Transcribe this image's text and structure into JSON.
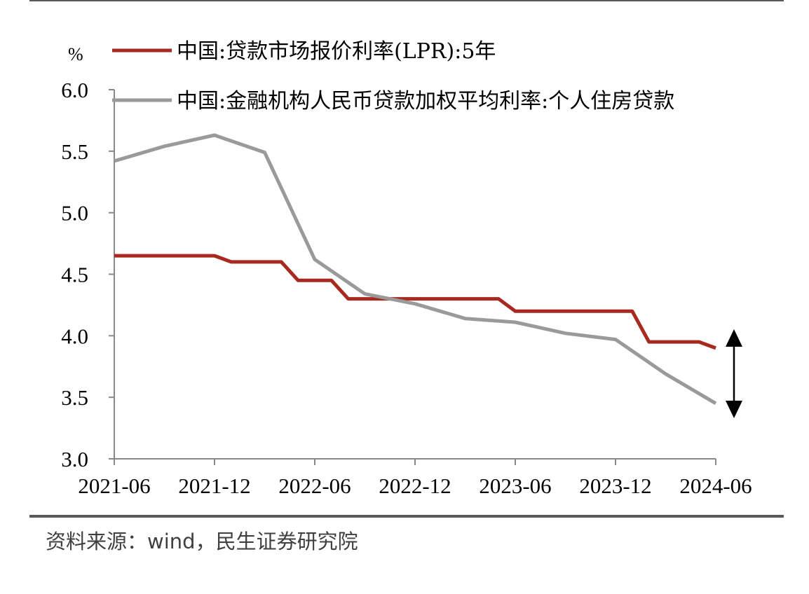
{
  "chart_data": {
    "type": "line",
    "unit": "%",
    "x_ticks": [
      "2021-06",
      "2021-12",
      "2022-06",
      "2022-12",
      "2023-06",
      "2023-12",
      "2024-06"
    ],
    "y_ticks": [
      "6.0",
      "5.5",
      "5.0",
      "4.5",
      "4.0",
      "3.5",
      "3.0"
    ],
    "ylim": [
      3.0,
      6.0
    ],
    "xlim": [
      "2021-06",
      "2024-06"
    ],
    "grid": false,
    "legend_position": "top-left",
    "series": [
      {
        "name": "中国:贷款市场报价利率(LPR):5年",
        "color": "#a8291f",
        "points": [
          [
            "2021-06",
            4.65
          ],
          [
            "2021-07",
            4.65
          ],
          [
            "2021-08",
            4.65
          ],
          [
            "2021-09",
            4.65
          ],
          [
            "2021-10",
            4.65
          ],
          [
            "2021-11",
            4.65
          ],
          [
            "2021-12",
            4.65
          ],
          [
            "2022-01",
            4.6
          ],
          [
            "2022-02",
            4.6
          ],
          [
            "2022-03",
            4.6
          ],
          [
            "2022-04",
            4.6
          ],
          [
            "2022-05",
            4.45
          ],
          [
            "2022-06",
            4.45
          ],
          [
            "2022-07",
            4.45
          ],
          [
            "2022-08",
            4.3
          ],
          [
            "2022-09",
            4.3
          ],
          [
            "2022-10",
            4.3
          ],
          [
            "2022-11",
            4.3
          ],
          [
            "2022-12",
            4.3
          ],
          [
            "2023-01",
            4.3
          ],
          [
            "2023-02",
            4.3
          ],
          [
            "2023-03",
            4.3
          ],
          [
            "2023-04",
            4.3
          ],
          [
            "2023-05",
            4.3
          ],
          [
            "2023-06",
            4.2
          ],
          [
            "2023-07",
            4.2
          ],
          [
            "2023-08",
            4.2
          ],
          [
            "2023-09",
            4.2
          ],
          [
            "2023-10",
            4.2
          ],
          [
            "2023-11",
            4.2
          ],
          [
            "2023-12",
            4.2
          ],
          [
            "2024-01",
            4.2
          ],
          [
            "2024-02",
            3.95
          ],
          [
            "2024-03",
            3.95
          ],
          [
            "2024-04",
            3.95
          ],
          [
            "2024-05",
            3.95
          ],
          [
            "2024-06",
            3.9
          ]
        ]
      },
      {
        "name": "中国:金融机构人民币贷款加权平均利率:个人住房贷款",
        "color": "#9a9a9a",
        "points": [
          [
            "2021-06",
            5.42
          ],
          [
            "2021-09",
            5.54
          ],
          [
            "2021-12",
            5.63
          ],
          [
            "2022-03",
            5.49
          ],
          [
            "2022-06",
            4.62
          ],
          [
            "2022-09",
            4.34
          ],
          [
            "2022-12",
            4.26
          ],
          [
            "2023-03",
            4.14
          ],
          [
            "2023-06",
            4.11
          ],
          [
            "2023-09",
            4.02
          ],
          [
            "2023-12",
            3.97
          ],
          [
            "2024-03",
            3.69
          ],
          [
            "2024-06",
            3.45
          ]
        ]
      }
    ]
  },
  "source": "资料来源：wind，民生证券研究院"
}
